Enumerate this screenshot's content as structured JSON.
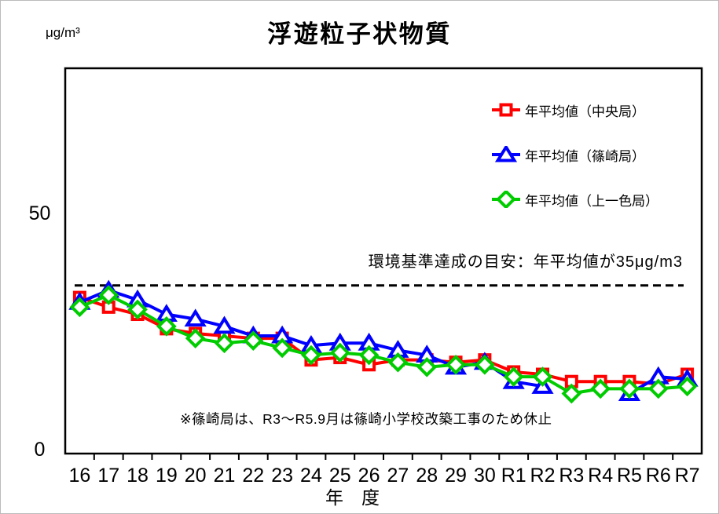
{
  "chart_data": {
    "type": "line",
    "title": "浮遊粒子状物質",
    "y_unit_label": "μg/m³",
    "xlabel": "年　度",
    "ylabel": "",
    "ylim": [
      0,
      50
    ],
    "ytick_labels": [
      "0",
      "50"
    ],
    "grid": false,
    "legend_position": "top-right-inside",
    "categories": [
      "16",
      "17",
      "18",
      "19",
      "20",
      "21",
      "22",
      "23",
      "24",
      "25",
      "26",
      "27",
      "28",
      "29",
      "30",
      "R1",
      "R2",
      "R3",
      "R4",
      "R5",
      "R6",
      "R7"
    ],
    "reference_line": {
      "value": 35,
      "style": "dashed",
      "color": "#000000",
      "label": "環境基準達成の目安：年平均値が35μg/m3"
    },
    "footnote": "※篠崎局は、R3～R5.9月は篠崎小学校改築工事のため休止",
    "series": [
      {
        "name": "年平均値（中央局）",
        "station": "chuo",
        "color": "#ff0000",
        "marker": "square",
        "values": [
          32.5,
          30.5,
          29,
          26,
          25,
          24.5,
          24,
          24,
          19.5,
          20,
          18.5,
          19.5,
          19.5,
          19,
          19.5,
          17,
          16.5,
          15,
          15,
          15,
          14.5,
          16.5
        ]
      },
      {
        "name": "年平均値（篠崎局）",
        "station": "shinozaki",
        "color": "#0000ff",
        "marker": "triangle",
        "values": [
          31.5,
          34,
          32,
          29,
          28,
          26.5,
          24.5,
          24.5,
          22.5,
          23,
          23,
          21.5,
          20.5,
          18,
          19,
          15,
          14,
          null,
          null,
          12.5,
          16,
          15.5
        ]
      },
      {
        "name": "年平均値（上一色局）",
        "station": "kamiisshiki",
        "color": "#00cc00",
        "marker": "diamond",
        "values": [
          30.5,
          33,
          30,
          26.5,
          24,
          23,
          23.5,
          22,
          20.5,
          21,
          20.5,
          19,
          18,
          18.5,
          18.5,
          16,
          16,
          12.5,
          13.5,
          13.5,
          13.5,
          14
        ]
      }
    ]
  }
}
